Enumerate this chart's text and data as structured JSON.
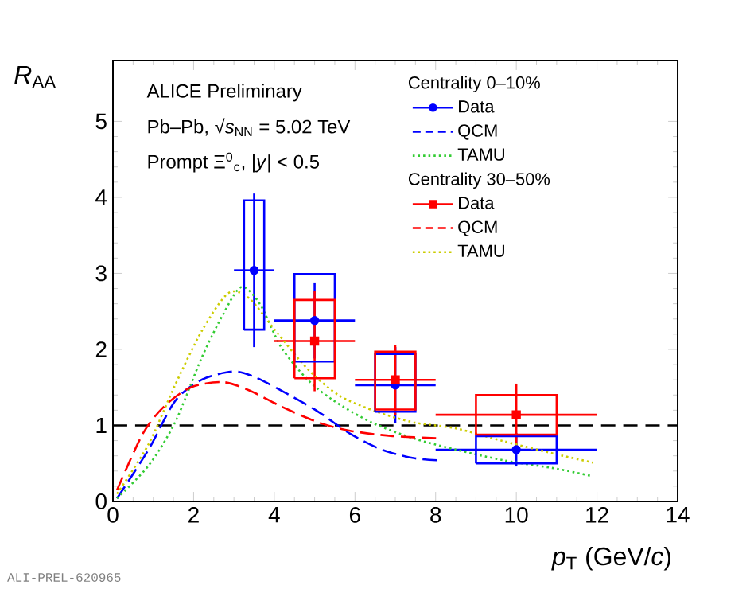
{
  "chart_data": {
    "type": "scatter",
    "xlabel": "*p*$_{T}$ (GeV/*c*)",
    "ylabel": "*R*$_{AA}$",
    "xlim": [
      0,
      14
    ],
    "ylim": [
      0,
      5.8
    ],
    "xticks": [
      0,
      2,
      4,
      6,
      8,
      10,
      12,
      14
    ],
    "yticks": [
      0,
      1,
      2,
      3,
      4,
      5
    ],
    "legend": "top right",
    "grid": false,
    "annotations": [
      "ALICE Preliminary",
      "Pb–Pb, √*s*$_{NN}$ = 5.02 TeV",
      "Prompt Ξ$^{0}$$_{c}$, |*y*| < 0.5",
      "Centrality 0–10%",
      "Centrality 30–50%",
      "ALI-PREL-620965"
    ],
    "ref_lines": [
      {
        "axis": "y",
        "value": 1,
        "color": "#000000",
        "line_style": "dashed"
      }
    ],
    "series": [
      {
        "name": "Data",
        "marker": "circle",
        "color": "#0000ff",
        "x": [
          3.5,
          5,
          7,
          10
        ],
        "values": [
          3.04,
          2.38,
          1.53,
          0.68
        ],
        "errors": [
          1.01,
          0.5,
          0.5,
          0.22
        ],
        "xerrors": [
          0.5,
          1,
          1,
          2
        ]
      },
      {
        "name": "QCM",
        "type": "line",
        "line_style": "dashed",
        "color": "#0000ff",
        "x": [
          0.1,
          0.88,
          1.54,
          2.2,
          2.98,
          3.5,
          4.17,
          5.09,
          5.88,
          6.67,
          7.45,
          8.1
        ],
        "values": [
          0.04,
          0.68,
          1.32,
          1.6,
          1.71,
          1.64,
          1.46,
          1.18,
          0.89,
          0.68,
          0.57,
          0.54
        ]
      },
      {
        "name": "TAMU",
        "type": "line",
        "line_style": "dotted",
        "color": "#33cc33",
        "x": [
          0.1,
          0.88,
          1.54,
          2.2,
          2.72,
          3.18,
          3.64,
          4.17,
          4.83,
          5.49,
          6.41,
          7.45,
          8.51,
          9.7,
          11.0,
          11.9
        ],
        "values": [
          0.04,
          0.47,
          1.04,
          1.89,
          2.45,
          2.82,
          2.6,
          2.03,
          1.6,
          1.32,
          1.04,
          0.83,
          0.68,
          0.54,
          0.43,
          0.33
        ]
      },
      {
        "name": "Data",
        "marker": "square",
        "color": "#ff0000",
        "x": [
          5,
          7,
          10
        ],
        "values": [
          2.11,
          1.6,
          1.14
        ],
        "errors": [
          0.66,
          0.46,
          0.41
        ],
        "xerrors": [
          1,
          1,
          2
        ]
      },
      {
        "name": "QCM",
        "type": "line",
        "line_style": "dashed",
        "color": "#ff0000",
        "x": [
          0.1,
          0.74,
          1.27,
          1.93,
          2.72,
          3.38,
          4.17,
          5.09,
          5.88,
          6.93,
          8.1
        ],
        "values": [
          0.15,
          0.89,
          1.25,
          1.5,
          1.57,
          1.46,
          1.25,
          1.04,
          0.93,
          0.86,
          0.83
        ]
      },
      {
        "name": "TAMU",
        "type": "line",
        "line_style": "dotted",
        "color": "#cccc00",
        "x": [
          0.1,
          0.88,
          1.54,
          2.2,
          2.86,
          3.38,
          4.04,
          4.83,
          5.62,
          6.54,
          7.45,
          8.51,
          9.7,
          11.0,
          11.9
        ],
        "values": [
          0.1,
          0.75,
          1.53,
          2.24,
          2.74,
          2.67,
          2.24,
          1.74,
          1.39,
          1.18,
          1.04,
          0.96,
          0.79,
          0.62,
          0.51
        ]
      },
      {
        "type": "bar",
        "color": "#0000ff",
        "x": [
          3.5,
          5,
          7,
          10
        ],
        "base": [
          2.26,
          1.84,
          1.18,
          0.5
        ],
        "values": [
          1.7,
          1.15,
          0.76,
          0.36
        ]
      },
      {
        "type": "bar",
        "color": "#ff0000",
        "x": [
          5,
          7,
          10
        ],
        "base": [
          1.62,
          1.21,
          0.88
        ],
        "values": [
          1.03,
          0.76,
          0.52
        ]
      }
    ]
  }
}
